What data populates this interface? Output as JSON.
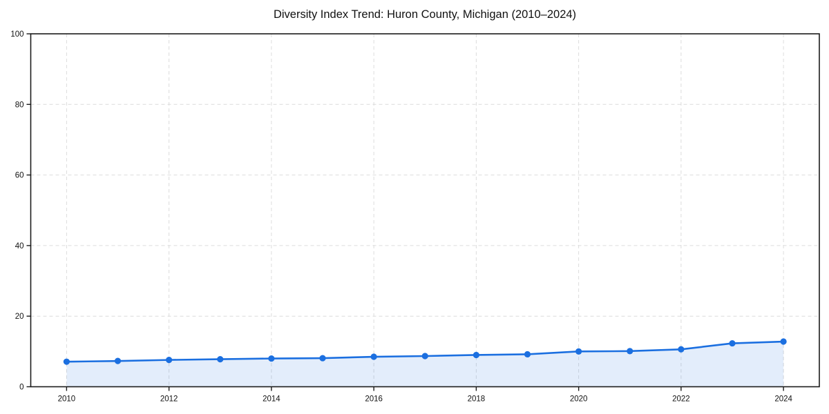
{
  "chart_data": {
    "type": "line",
    "title": "Diversity Index Trend: Huron County, Michigan (2010–2024)",
    "series_name": "Diversity Index",
    "x": [
      2010,
      2011,
      2012,
      2013,
      2014,
      2015,
      2016,
      2017,
      2018,
      2019,
      2020,
      2021,
      2022,
      2023,
      2024
    ],
    "values": [
      7.1,
      7.3,
      7.6,
      7.8,
      8.0,
      8.1,
      8.5,
      8.7,
      9.0,
      9.2,
      10.0,
      10.1,
      10.6,
      12.3,
      12.8
    ],
    "xlabel": "",
    "ylabel": "",
    "xlim": [
      2009.3,
      2024.7
    ],
    "ylim": [
      0,
      100
    ],
    "x_ticks": [
      2010,
      2012,
      2014,
      2016,
      2018,
      2020,
      2022,
      2024
    ],
    "y_ticks": [
      0,
      20,
      40,
      60,
      80,
      100
    ],
    "grid": true,
    "grid_style": "dashed",
    "legend": false,
    "marker": "circle",
    "area_fill": true,
    "colors": {
      "line": "#1b6fe0",
      "marker": "#1b6fe0",
      "fill": "#1b6fe0",
      "fill_opacity": 0.12,
      "grid": "#dcdcdc",
      "spine": "#1a1a1a",
      "tick_text": "#111111",
      "background": "#ffffff"
    }
  }
}
